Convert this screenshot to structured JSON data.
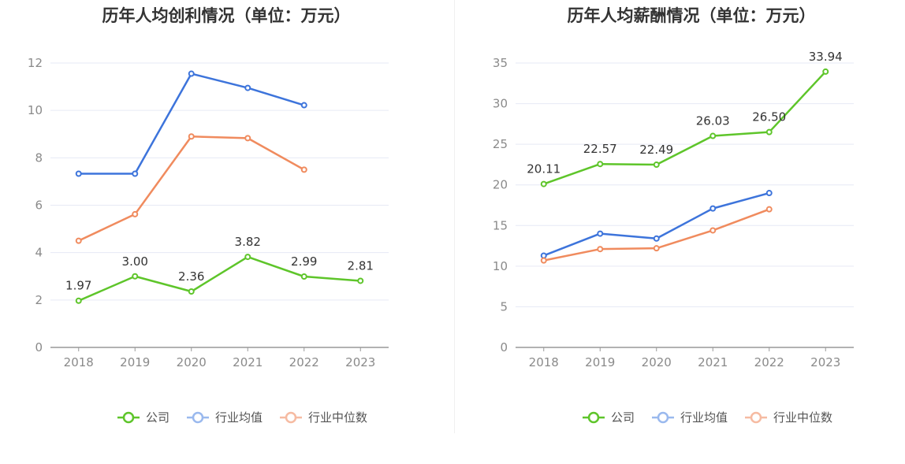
{
  "chart_data": [
    {
      "type": "line",
      "title": "历年人均创利情况（单位：万元）",
      "categories": [
        "2018",
        "2019",
        "2020",
        "2021",
        "2022",
        "2023"
      ],
      "ylim": [
        0,
        12
      ],
      "yticks": [
        0,
        2,
        4,
        6,
        8,
        10,
        12
      ],
      "grid": true,
      "legend_position": "bottom",
      "series": [
        {
          "name": "公司",
          "color": "#5ec52a",
          "values": [
            1.97,
            3.0,
            2.36,
            3.82,
            2.99,
            2.81
          ],
          "labels": [
            "1.97",
            "3.00",
            "2.36",
            "3.82",
            "2.99",
            "2.81"
          ]
        },
        {
          "name": "行业均值",
          "color": "#3d74db",
          "values": [
            7.33,
            7.33,
            11.55,
            10.95,
            10.22,
            null
          ]
        },
        {
          "name": "行业中位数",
          "color": "#f08b5e",
          "values": [
            4.5,
            5.62,
            8.9,
            8.83,
            7.5,
            null
          ]
        }
      ]
    },
    {
      "type": "line",
      "title": "历年人均薪酬情况（单位：万元）",
      "categories": [
        "2018",
        "2019",
        "2020",
        "2021",
        "2022",
        "2023"
      ],
      "ylim": [
        0,
        35
      ],
      "yticks": [
        0,
        5,
        10,
        15,
        20,
        25,
        30,
        35
      ],
      "grid": true,
      "legend_position": "bottom",
      "series": [
        {
          "name": "公司",
          "color": "#5ec52a",
          "values": [
            20.11,
            22.57,
            22.49,
            26.03,
            26.5,
            33.94
          ],
          "labels": [
            "20.11",
            "22.57",
            "22.49",
            "26.03",
            "26.50",
            "33.94"
          ]
        },
        {
          "name": "行业均值",
          "color": "#3d74db",
          "values": [
            11.3,
            14.0,
            13.4,
            17.1,
            19.0,
            null
          ]
        },
        {
          "name": "行业中位数",
          "color": "#f08b5e",
          "values": [
            10.7,
            12.1,
            12.2,
            14.4,
            17.0,
            null
          ]
        }
      ]
    }
  ]
}
